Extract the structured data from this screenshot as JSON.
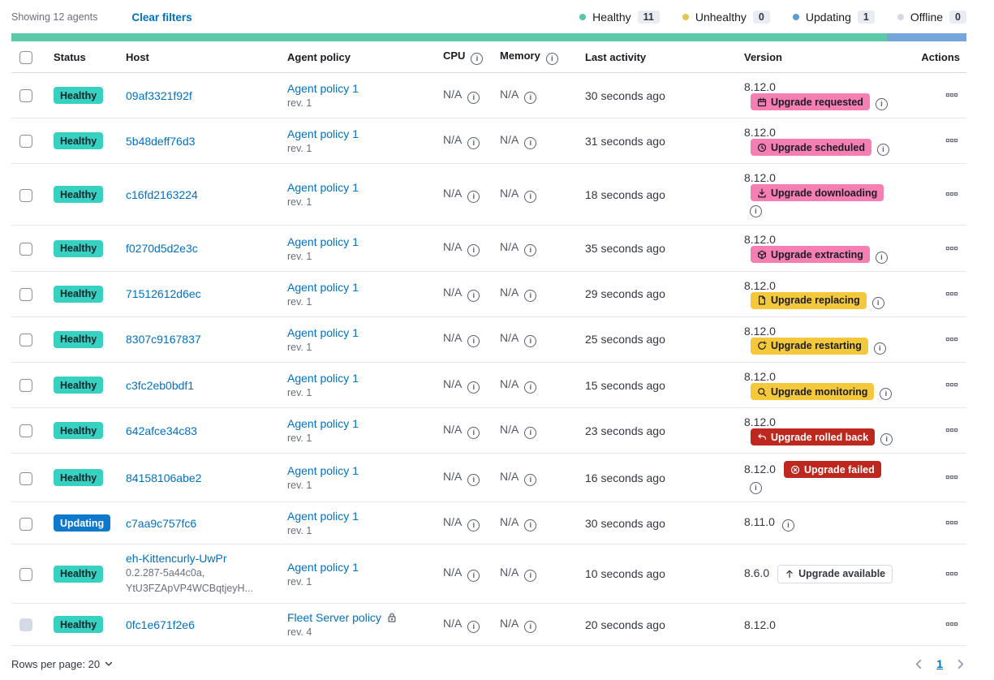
{
  "header": {
    "showing": "Showing 12 agents",
    "clear_filters": "Clear filters",
    "legend": [
      {
        "name": "healthy",
        "label": "Healthy",
        "count": "11",
        "color": "#54c8a4"
      },
      {
        "name": "unhealthy",
        "label": "Unhealthy",
        "count": "0",
        "color": "#e3c84e"
      },
      {
        "name": "updating",
        "label": "Updating",
        "count": "1",
        "color": "#5b9bd6"
      },
      {
        "name": "offline",
        "label": "Offline",
        "count": "0",
        "color": "#d3dae6"
      }
    ],
    "progress": {
      "healthy_percent": 91.7,
      "healthy_color": "#5dc9a8",
      "updating_color": "#74a6db"
    }
  },
  "table": {
    "columns": {
      "status": "Status",
      "host": "Host",
      "policy": "Agent policy",
      "cpu": "CPU",
      "memory": "Memory",
      "last_activity": "Last activity",
      "version": "Version",
      "actions": "Actions"
    },
    "rows": [
      {
        "status": {
          "label": "Healthy",
          "variant": "healthy"
        },
        "host": "09af3321f92f",
        "policy": "Agent policy 1",
        "policy_rev": "rev. 1",
        "policy_locked": false,
        "cpu": "N/A",
        "memory": "N/A",
        "last_activity": "30 seconds ago",
        "version": "8.12.0",
        "version_info": false,
        "upgrade": {
          "label": "Upgrade requested",
          "variant": "pink",
          "icon": "calendar"
        },
        "upgrade_info": true,
        "checkbox_disabled": false
      },
      {
        "status": {
          "label": "Healthy",
          "variant": "healthy"
        },
        "host": "5b48deff76d3",
        "policy": "Agent policy 1",
        "policy_rev": "rev. 1",
        "policy_locked": false,
        "cpu": "N/A",
        "memory": "N/A",
        "last_activity": "31 seconds ago",
        "version": "8.12.0",
        "version_info": false,
        "upgrade": {
          "label": "Upgrade scheduled",
          "variant": "pink",
          "icon": "clock"
        },
        "upgrade_info": true,
        "checkbox_disabled": false
      },
      {
        "status": {
          "label": "Healthy",
          "variant": "healthy"
        },
        "host": "c16fd2163224",
        "policy": "Agent policy 1",
        "policy_rev": "rev. 1",
        "policy_locked": false,
        "cpu": "N/A",
        "memory": "N/A",
        "last_activity": "18 seconds ago",
        "version": "8.12.0",
        "version_info": false,
        "upgrade": {
          "label": "Upgrade downloading",
          "variant": "pink",
          "icon": "download"
        },
        "upgrade_info": true,
        "checkbox_disabled": false
      },
      {
        "status": {
          "label": "Healthy",
          "variant": "healthy"
        },
        "host": "f0270d5d2e3c",
        "policy": "Agent policy 1",
        "policy_rev": "rev. 1",
        "policy_locked": false,
        "cpu": "N/A",
        "memory": "N/A",
        "last_activity": "35 seconds ago",
        "version": "8.12.0",
        "version_info": false,
        "upgrade": {
          "label": "Upgrade extracting",
          "variant": "pink",
          "icon": "package"
        },
        "upgrade_info": true,
        "checkbox_disabled": false
      },
      {
        "status": {
          "label": "Healthy",
          "variant": "healthy"
        },
        "host": "71512612d6ec",
        "policy": "Agent policy 1",
        "policy_rev": "rev. 1",
        "policy_locked": false,
        "cpu": "N/A",
        "memory": "N/A",
        "last_activity": "29 seconds ago",
        "version": "8.12.0",
        "version_info": false,
        "upgrade": {
          "label": "Upgrade replacing",
          "variant": "yellow",
          "icon": "document"
        },
        "upgrade_info": true,
        "checkbox_disabled": false
      },
      {
        "status": {
          "label": "Healthy",
          "variant": "healthy"
        },
        "host": "8307c9167837",
        "policy": "Agent policy 1",
        "policy_rev": "rev. 1",
        "policy_locked": false,
        "cpu": "N/A",
        "memory": "N/A",
        "last_activity": "25 seconds ago",
        "version": "8.12.0",
        "version_info": false,
        "upgrade": {
          "label": "Upgrade restarting",
          "variant": "yellow",
          "icon": "refresh"
        },
        "upgrade_info": true,
        "checkbox_disabled": false
      },
      {
        "status": {
          "label": "Healthy",
          "variant": "healthy"
        },
        "host": "c3fc2eb0bdf1",
        "policy": "Agent policy 1",
        "policy_rev": "rev. 1",
        "policy_locked": false,
        "cpu": "N/A",
        "memory": "N/A",
        "last_activity": "15 seconds ago",
        "version": "8.12.0",
        "version_info": false,
        "upgrade": {
          "label": "Upgrade monitoring",
          "variant": "yellow",
          "icon": "inspect"
        },
        "upgrade_info": true,
        "checkbox_disabled": false
      },
      {
        "status": {
          "label": "Healthy",
          "variant": "healthy"
        },
        "host": "642afce34c83",
        "policy": "Agent policy 1",
        "policy_rev": "rev. 1",
        "policy_locked": false,
        "cpu": "N/A",
        "memory": "N/A",
        "last_activity": "23 seconds ago",
        "version": "8.12.0",
        "version_info": false,
        "upgrade": {
          "label": "Upgrade rolled back",
          "variant": "red",
          "icon": "return"
        },
        "upgrade_info": true,
        "checkbox_disabled": false
      },
      {
        "status": {
          "label": "Healthy",
          "variant": "healthy"
        },
        "host": "84158106abe2",
        "policy": "Agent policy 1",
        "policy_rev": "rev. 1",
        "policy_locked": false,
        "cpu": "N/A",
        "memory": "N/A",
        "last_activity": "16 seconds ago",
        "version": "8.12.0",
        "version_info": false,
        "upgrade": {
          "label": "Upgrade failed",
          "variant": "red",
          "icon": "cross"
        },
        "upgrade_info": true,
        "checkbox_disabled": false
      },
      {
        "status": {
          "label": "Updating",
          "variant": "updating"
        },
        "host": "c7aa9c757fc6",
        "policy": "Agent policy 1",
        "policy_rev": "rev. 1",
        "policy_locked": false,
        "cpu": "N/A",
        "memory": "N/A",
        "last_activity": "30 seconds ago",
        "version": "8.11.0",
        "version_info": true,
        "upgrade": null,
        "upgrade_info": false,
        "checkbox_disabled": false
      },
      {
        "status": {
          "label": "Healthy",
          "variant": "healthy"
        },
        "host": "eh-Kittencurly-UwPr",
        "host_sub": [
          "0.2.287-5a44c0a,",
          "YtU3FZApVP4WCBqtjeyH..."
        ],
        "policy": "Agent policy 1",
        "policy_rev": "rev. 1",
        "policy_locked": false,
        "cpu": "N/A",
        "memory": "N/A",
        "last_activity": "10 seconds ago",
        "version": "8.6.0",
        "version_info": false,
        "upgrade": {
          "label": "Upgrade available",
          "variant": "hollow",
          "icon": "arrow-up"
        },
        "upgrade_info": false,
        "checkbox_disabled": false
      },
      {
        "status": {
          "label": "Healthy",
          "variant": "healthy"
        },
        "host": "0fc1e671f2e6",
        "policy": "Fleet Server policy",
        "policy_rev": "rev. 4",
        "policy_locked": true,
        "cpu": "N/A",
        "memory": "N/A",
        "last_activity": "20 seconds ago",
        "version": "8.12.0",
        "version_info": false,
        "upgrade": null,
        "upgrade_info": false,
        "checkbox_disabled": true
      }
    ]
  },
  "footer": {
    "rows_per_page_label": "Rows per page: 20",
    "page": "1"
  }
}
